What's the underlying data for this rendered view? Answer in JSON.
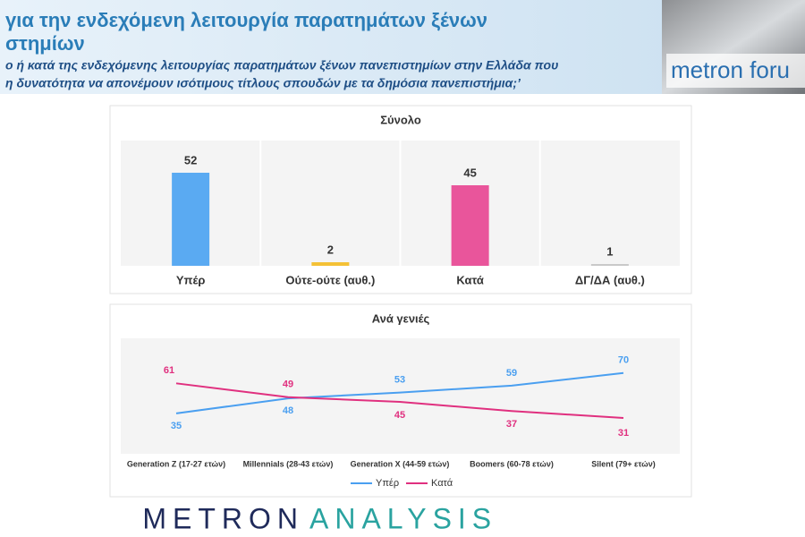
{
  "header": {
    "title_lines": [
      "για την ενδεχόμενη λειτουργία παρατημάτων ξένων",
      "στημίων"
    ],
    "subtitle_lines": [
      "ο ή κατά της ενδεχόμενης λειτουργίας παρατημάτων ξένων πανεπιστημίων στην Ελλάδα που",
      "η δυνατότητα να απονέμουν ισότιμους τίτλους σπουδών με τα δημόσια πανεπιστήμια;’"
    ],
    "logo": "metron foru"
  },
  "chart_data": [
    {
      "type": "bar",
      "title": "Σύνολο",
      "categories": [
        "Υπέρ",
        "Ούτε-ούτε (αυθ.)",
        "Κατά",
        "ΔΓ/ΔΑ (αυθ.)"
      ],
      "values": [
        52,
        2,
        45,
        1
      ],
      "colors": [
        "#5aaaf2",
        "#f4c136",
        "#e9559b",
        "#c9c9c9"
      ],
      "ylim": [
        0,
        70
      ]
    },
    {
      "type": "line",
      "title": "Ανά γενιές",
      "categories": [
        "Generation Z (17-27 ετών)",
        "Millennials (28-43 ετών)",
        "Generation X (44-59 ετών)",
        "Boomers (60-78 ετών)",
        "Silent (79+ ετών)"
      ],
      "series": [
        {
          "name": "Υπέρ",
          "color": "#4a9ff0",
          "values": [
            35,
            48,
            53,
            59,
            70
          ]
        },
        {
          "name": "Κατά",
          "color": "#e0307f",
          "values": [
            61,
            49,
            45,
            37,
            31
          ]
        }
      ],
      "ylim": [
        0,
        100
      ],
      "legend": "bottom"
    }
  ],
  "footer": {
    "brand": [
      "METRON",
      "ANALYSIS"
    ]
  }
}
